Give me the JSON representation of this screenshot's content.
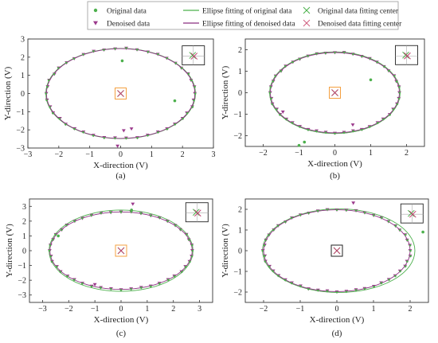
{
  "legend": {
    "entries": [
      {
        "key": "orig",
        "label": "Original data"
      },
      {
        "key": "orig_fit",
        "label": "Ellipse fitting of original data"
      },
      {
        "key": "orig_center",
        "label": "Original data fitting center"
      },
      {
        "key": "den",
        "label": "Denoised data"
      },
      {
        "key": "den_fit",
        "label": "Ellipse fitting of denoised data"
      },
      {
        "key": "den_center",
        "label": "Denoised data fitting center"
      }
    ]
  },
  "colors": {
    "original": "#4cb04c",
    "denoised": "#9b3a8c",
    "fit_original": "#4cb04c",
    "fit_denoised": "#8a2f80",
    "center_box": "#f4a040",
    "inset_box": "#222222"
  },
  "chart_data": [
    {
      "type": "scatter",
      "panel": "(a)",
      "xlabel": "X-direction (V)",
      "ylabel": "Y-direction (V)",
      "xlim": [
        -3,
        3
      ],
      "ylim": [
        -3,
        3
      ],
      "xticks": [
        -3,
        -2,
        -1,
        0,
        1,
        2,
        3
      ],
      "yticks": [
        -3,
        -2,
        -1,
        0,
        1,
        2,
        3
      ],
      "fit_original": {
        "cx": 0.0,
        "cy": 0.0,
        "a": 2.42,
        "b": 2.48
      },
      "fit_denoised": {
        "cx": 0.0,
        "cy": 0.0,
        "a": 2.4,
        "b": 2.47
      },
      "outliers": [
        {
          "x": 0.05,
          "y": 1.8
        },
        {
          "x": 1.75,
          "y": -0.4
        }
      ],
      "denoised_outliers": [
        {
          "x": 0.1,
          "y": -2.05
        },
        {
          "x": 0.35,
          "y": -1.95
        },
        {
          "x": -0.1,
          "y": -2.9
        }
      ],
      "n_points": 42,
      "center_box": "orange",
      "inset_center": {
        "x": 2.35,
        "y": 2.1
      }
    },
    {
      "type": "scatter",
      "panel": "(b)",
      "xlabel": "X-direction (V)",
      "ylabel": "Y-direction (V)",
      "xlim": [
        -2.5,
        2.5
      ],
      "ylim": [
        -2.5,
        2.5
      ],
      "xticks": [
        -2,
        -1,
        0,
        1,
        2
      ],
      "yticks": [
        -2,
        -1,
        0,
        1,
        2
      ],
      "fit_original": {
        "cx": 0.0,
        "cy": 0.0,
        "a": 1.82,
        "b": 1.9
      },
      "fit_denoised": {
        "cx": 0.0,
        "cy": 0.0,
        "a": 1.8,
        "b": 1.87
      },
      "outliers": [
        {
          "x": 1.0,
          "y": 0.6
        },
        {
          "x": -0.85,
          "y": -2.3
        },
        {
          "x": -1.0,
          "y": -2.45
        }
      ],
      "denoised_outliers": [
        {
          "x": -1.45,
          "y": -0.9
        },
        {
          "x": 0.5,
          "y": -1.5
        }
      ],
      "n_points": 44,
      "center_box": "orange",
      "inset_center": {
        "x": 2.0,
        "y": 1.75
      }
    },
    {
      "type": "scatter",
      "panel": "(c)",
      "xlabel": "X-direction (V)",
      "ylabel": "Y-direction (V)",
      "xlim": [
        -3.5,
        3.5
      ],
      "ylim": [
        -3.5,
        3.5
      ],
      "xticks": [
        -3,
        -2,
        -1,
        0,
        1,
        2,
        3
      ],
      "yticks": [
        -3,
        -2,
        -1,
        0,
        1,
        2,
        3
      ],
      "fit_original": {
        "cx": 0.0,
        "cy": 0.0,
        "a": 2.75,
        "b": 2.75
      },
      "fit_denoised": {
        "cx": 0.0,
        "cy": 0.0,
        "a": 2.72,
        "b": 2.62
      },
      "outliers": [
        {
          "x": -2.4,
          "y": 1.0
        },
        {
          "x": 0.4,
          "y": 2.75
        }
      ],
      "denoised_outliers": [
        {
          "x": -1.0,
          "y": -2.3
        },
        {
          "x": 0.45,
          "y": 3.15
        }
      ],
      "n_points": 44,
      "center_box": "orange",
      "inset_center": {
        "x": 2.9,
        "y": 2.6
      }
    },
    {
      "type": "scatter",
      "panel": "(d)",
      "xlabel": "X-direction (V)",
      "ylabel": "Y-direction (V)",
      "xlim": [
        -2.5,
        2.5
      ],
      "ylim": [
        -2.5,
        2.5
      ],
      "xticks": [
        -2,
        -1,
        0,
        1,
        2
      ],
      "yticks": [
        -2,
        -1,
        0,
        1,
        2
      ],
      "fit_original": {
        "cx": 0.05,
        "cy": 0.0,
        "a": 2.08,
        "b": 2.02
      },
      "fit_denoised": {
        "cx": 0.0,
        "cy": 0.0,
        "a": 2.0,
        "b": 1.98
      },
      "outliers": [
        {
          "x": 2.35,
          "y": 0.9
        }
      ],
      "denoised_outliers": [
        {
          "x": 0.45,
          "y": 2.3
        }
      ],
      "n_points": 48,
      "center_box": "black",
      "inset_center": {
        "x": 2.05,
        "y": 1.8
      }
    }
  ]
}
